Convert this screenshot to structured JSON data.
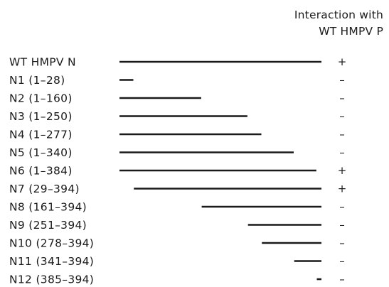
{
  "header": {
    "line1": "Interaction with",
    "line2": "WT HMPV P"
  },
  "constructs": [
    {
      "label": "WT HMPV N",
      "start": 1,
      "end": 394,
      "interaction": "+"
    },
    {
      "label": "N1 (1–28)",
      "start": 1,
      "end": 28,
      "interaction": "–"
    },
    {
      "label": "N2 (1–160)",
      "start": 1,
      "end": 160,
      "interaction": "–"
    },
    {
      "label": "N3 (1–250)",
      "start": 1,
      "end": 250,
      "interaction": "–"
    },
    {
      "label": "N4 (1–277)",
      "start": 1,
      "end": 277,
      "interaction": "–"
    },
    {
      "label": "N5 (1–340)",
      "start": 1,
      "end": 340,
      "interaction": "–"
    },
    {
      "label": "N6 (1–384)",
      "start": 1,
      "end": 384,
      "interaction": "+"
    },
    {
      "label": "N7 (29–394)",
      "start": 29,
      "end": 394,
      "interaction": "+"
    },
    {
      "label": "N8 (161–394)",
      "start": 161,
      "end": 394,
      "interaction": "–"
    },
    {
      "label": "N9 (251–394)",
      "start": 251,
      "end": 394,
      "interaction": "–"
    },
    {
      "label": "N10 (278–394)",
      "start": 278,
      "end": 394,
      "interaction": "–"
    },
    {
      "label": "N11 (341–394)",
      "start": 341,
      "end": 394,
      "interaction": "–"
    },
    {
      "label": "N12 (385–394)",
      "start": 385,
      "end": 394,
      "interaction": "–"
    }
  ]
}
